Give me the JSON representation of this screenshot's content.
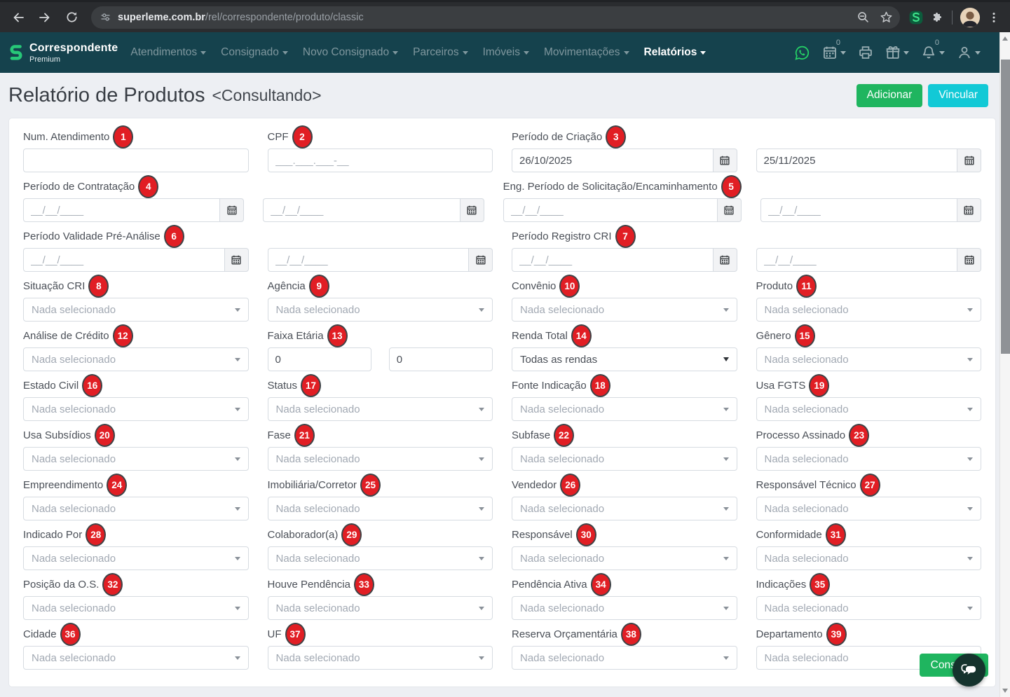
{
  "colors": {
    "nav_bg": "#15424D",
    "accent_green": "#1FB55F",
    "accent_cyan": "#12C9D6",
    "badge_red": "#E11E24",
    "whatsapp_green": "#25D366"
  },
  "browser": {
    "url_domain": "superleme.com.br",
    "url_path": "/rel/correspondente/produto/classic",
    "icons": [
      "back-arrow",
      "forward-arrow",
      "reload",
      "site-info",
      "zoom-out",
      "bookmark-star",
      "extension-s",
      "extensions-puzzle",
      "profile-avatar",
      "menu-dots"
    ]
  },
  "navbar": {
    "brand_title": "Correspondente",
    "brand_subtitle": "Premium",
    "items": [
      {
        "label": "Atendimentos",
        "active": false
      },
      {
        "label": "Consignado",
        "active": false
      },
      {
        "label": "Novo Consignado",
        "active": false
      },
      {
        "label": "Parceiros",
        "active": false
      },
      {
        "label": "Imóveis",
        "active": false
      },
      {
        "label": "Movimentações",
        "active": false
      },
      {
        "label": "Relatórios",
        "active": true
      }
    ],
    "tools": [
      {
        "icon": "whatsapp"
      },
      {
        "icon": "calendar",
        "sup": "0",
        "caret": true
      },
      {
        "icon": "printer"
      },
      {
        "icon": "gift",
        "caret": true
      },
      {
        "icon": "bell",
        "sup": "0",
        "caret": true
      },
      {
        "icon": "user",
        "caret": true
      }
    ]
  },
  "header": {
    "title": "Relatório de Produtos",
    "mode": "<Consultando>",
    "buttons": [
      {
        "label": "Adicionar",
        "color": "#1FB55F"
      },
      {
        "label": "Vincular",
        "color": "#12C9D6"
      }
    ]
  },
  "form": {
    "select_placeholder": "Nada selecionado",
    "rows": [
      [
        {
          "label": "Num. Atendimento",
          "badge": "1",
          "control": {
            "kind": "text",
            "value": "",
            "placeholder": ""
          }
        },
        {
          "label": "CPF",
          "badge": "2",
          "control": {
            "kind": "text",
            "value": "",
            "placeholder": "___.___.___-__"
          }
        },
        {
          "label": "Período de Criação",
          "badge": "3",
          "control": {
            "kind": "date",
            "value": "26/10/2025",
            "placeholder": ""
          }
        },
        {
          "label": "",
          "control": {
            "kind": "date",
            "value": "25/11/2025",
            "placeholder": ""
          }
        }
      ],
      [
        {
          "label": "Período de Contratação",
          "badge": "4",
          "control": {
            "kind": "date",
            "value": "",
            "placeholder": "__/__/____"
          }
        },
        {
          "label": "",
          "control": {
            "kind": "date",
            "value": "",
            "placeholder": "__/__/____"
          }
        },
        {
          "label": "Eng. Período de Solicitação/Encaminhamento",
          "badge": "5",
          "control": {
            "kind": "date",
            "value": "",
            "placeholder": "__/__/____"
          }
        },
        {
          "label": "",
          "control": {
            "kind": "date",
            "value": "",
            "placeholder": "__/__/____"
          }
        }
      ],
      [
        {
          "label": "Período Validade Pré-Análise",
          "badge": "6",
          "control": {
            "kind": "date",
            "value": "",
            "placeholder": "__/__/____"
          }
        },
        {
          "label": "",
          "control": {
            "kind": "date",
            "value": "",
            "placeholder": "__/__/____"
          }
        },
        {
          "label": "Período Registro CRI",
          "badge": "7",
          "control": {
            "kind": "date",
            "value": "",
            "placeholder": "__/__/____"
          }
        },
        {
          "label": "",
          "control": {
            "kind": "date",
            "value": "",
            "placeholder": "__/__/____"
          }
        }
      ],
      [
        {
          "label": "Situação CRI",
          "badge": "8",
          "control": {
            "kind": "select",
            "value": "Nada selecionado",
            "muted": true
          }
        },
        {
          "label": "Agência",
          "badge": "9",
          "control": {
            "kind": "select",
            "value": "Nada selecionado",
            "muted": true
          }
        },
        {
          "label": "Convênio",
          "badge": "10",
          "control": {
            "kind": "select",
            "value": "Nada selecionado",
            "muted": true
          }
        },
        {
          "label": "Produto",
          "badge": "11",
          "control": {
            "kind": "select",
            "value": "Nada selecionado",
            "muted": true
          }
        }
      ],
      [
        {
          "label": "Análise de Crédito",
          "badge": "12",
          "control": {
            "kind": "select",
            "value": "Nada selecionado",
            "muted": true
          }
        },
        {
          "label": "Faixa Etária",
          "badge": "13",
          "control": {
            "kind": "pair",
            "values": [
              "0",
              "0"
            ]
          }
        },
        {
          "label": "Renda Total",
          "badge": "14",
          "control": {
            "kind": "select",
            "value": "Todas as rendas",
            "muted": false
          }
        },
        {
          "label": "Gênero",
          "badge": "15",
          "control": {
            "kind": "select",
            "value": "Nada selecionado",
            "muted": true
          }
        }
      ],
      [
        {
          "label": "Estado Civil",
          "badge": "16",
          "control": {
            "kind": "select",
            "value": "Nada selecionado",
            "muted": true
          }
        },
        {
          "label": "Status",
          "badge": "17",
          "control": {
            "kind": "select",
            "value": "Nada selecionado",
            "muted": true
          }
        },
        {
          "label": "Fonte Indicação",
          "badge": "18",
          "control": {
            "kind": "select",
            "value": "Nada selecionado",
            "muted": true
          }
        },
        {
          "label": "Usa FGTS",
          "badge": "19",
          "control": {
            "kind": "select",
            "value": "Nada selecionado",
            "muted": true
          }
        }
      ],
      [
        {
          "label": "Usa Subsídios",
          "badge": "20",
          "control": {
            "kind": "select",
            "value": "Nada selecionado",
            "muted": true
          }
        },
        {
          "label": "Fase",
          "badge": "21",
          "control": {
            "kind": "select",
            "value": "Nada selecionado",
            "muted": true
          }
        },
        {
          "label": "Subfase",
          "badge": "22",
          "control": {
            "kind": "select",
            "value": "Nada selecionado",
            "muted": true
          }
        },
        {
          "label": "Processo Assinado",
          "badge": "23",
          "control": {
            "kind": "select",
            "value": "Nada selecionado",
            "muted": true
          }
        }
      ],
      [
        {
          "label": "Empreendimento",
          "badge": "24",
          "control": {
            "kind": "select",
            "value": "Nada selecionado",
            "muted": true
          }
        },
        {
          "label": "Imobiliária/Corretor",
          "badge": "25",
          "control": {
            "kind": "select",
            "value": "Nada selecionado",
            "muted": true
          }
        },
        {
          "label": "Vendedor",
          "badge": "26",
          "control": {
            "kind": "select",
            "value": "Nada selecionado",
            "muted": true
          }
        },
        {
          "label": "Responsável Técnico",
          "badge": "27",
          "control": {
            "kind": "select",
            "value": "Nada selecionado",
            "muted": true
          }
        }
      ],
      [
        {
          "label": "Indicado Por",
          "badge": "28",
          "control": {
            "kind": "select",
            "value": "Nada selecionado",
            "muted": true
          }
        },
        {
          "label": "Colaborador(a)",
          "badge": "29",
          "control": {
            "kind": "select",
            "value": "Nada selecionado",
            "muted": true
          }
        },
        {
          "label": "Responsável",
          "badge": "30",
          "control": {
            "kind": "select",
            "value": "Nada selecionado",
            "muted": true
          }
        },
        {
          "label": "Conformidade",
          "badge": "31",
          "control": {
            "kind": "select",
            "value": "Nada selecionado",
            "muted": true
          }
        }
      ],
      [
        {
          "label": "Posição da O.S.",
          "badge": "32",
          "control": {
            "kind": "select",
            "value": "Nada selecionado",
            "muted": true
          }
        },
        {
          "label": "Houve Pendência",
          "badge": "33",
          "control": {
            "kind": "select",
            "value": "Nada selecionado",
            "muted": true
          }
        },
        {
          "label": "Pendência Ativa",
          "badge": "34",
          "control": {
            "kind": "select",
            "value": "Nada selecionado",
            "muted": true
          }
        },
        {
          "label": "Indicações",
          "badge": "35",
          "control": {
            "kind": "select",
            "value": "Nada selecionado",
            "muted": true
          }
        }
      ],
      [
        {
          "label": "Cidade",
          "badge": "36",
          "control": {
            "kind": "select",
            "value": "Nada selecionado",
            "muted": true
          }
        },
        {
          "label": "UF",
          "badge": "37",
          "control": {
            "kind": "select",
            "value": "Nada selecionado",
            "muted": true
          }
        },
        {
          "label": "Reserva Orçamentária",
          "badge": "38",
          "control": {
            "kind": "select",
            "value": "Nada selecionado",
            "muted": true
          }
        },
        {
          "label": "Departamento",
          "badge": "39",
          "control": {
            "kind": "select",
            "value": "Nada selecionado",
            "muted": true
          }
        }
      ]
    ]
  },
  "footer": {
    "consult_label": "Consultar",
    "chat_icon": "chat-bubbles"
  }
}
